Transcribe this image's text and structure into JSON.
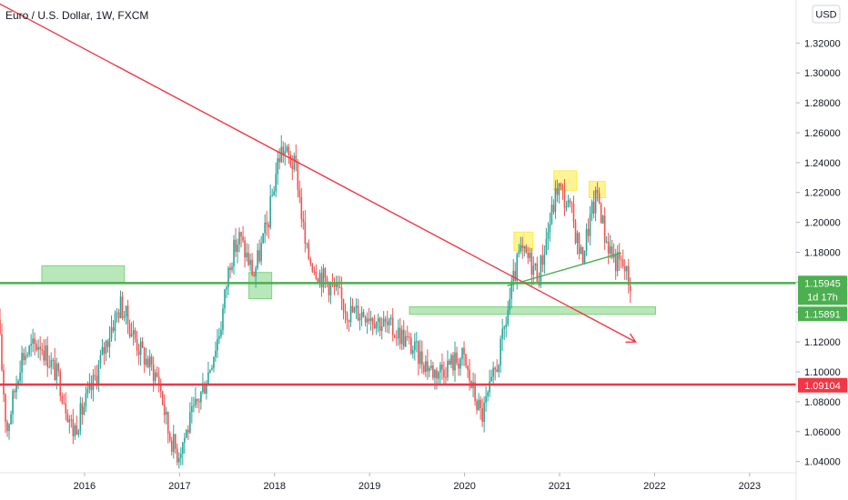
{
  "header": {
    "title": "Euro / U.S. Dollar, 1W, FXCM"
  },
  "currency_button": {
    "label": "USD"
  },
  "chart_data": {
    "type": "candlestick",
    "title": "Euro / U.S. Dollar, 1W, FXCM",
    "currency": "USD",
    "ylim": [
      1.0325,
      1.3488
    ],
    "y_ticks": [
      1.32,
      1.3,
      1.28,
      1.26,
      1.24,
      1.22,
      1.2,
      1.18,
      1.16,
      1.14,
      1.12,
      1.1,
      1.08,
      1.06,
      1.04
    ],
    "y_tick_labels": [
      "1.32000",
      "1.30000",
      "1.28000",
      "1.26000",
      "1.24000",
      "1.22000",
      "1.20000",
      "1.18000",
      "1.16000",
      "1.14000",
      "1.12000",
      "1.10000",
      "1.08000",
      "1.06000",
      "1.04000"
    ],
    "xlim": [
      2015.11,
      2023.49
    ],
    "x_ticks": [
      2016,
      2017,
      2018,
      2019,
      2020,
      2021,
      2022,
      2023
    ],
    "x_tick_labels": [
      "2016",
      "2017",
      "2018",
      "2019",
      "2020",
      "2021",
      "2022",
      "2023"
    ],
    "grid": false,
    "colors": {
      "up": "#26a69a",
      "down": "#ef5350",
      "green_line": "#4caf50",
      "red_line": "#f23645",
      "zone": "#7dd47f",
      "highlight": "#ffeb3b"
    },
    "price_path": [
      [
        2015.11,
        1.135
      ],
      [
        2015.2,
        1.06
      ],
      [
        2015.35,
        1.11
      ],
      [
        2015.55,
        1.12
      ],
      [
        2015.75,
        1.095
      ],
      [
        2015.9,
        1.06
      ],
      [
        2016.1,
        1.09
      ],
      [
        2016.3,
        1.13
      ],
      [
        2016.4,
        1.145
      ],
      [
        2016.6,
        1.115
      ],
      [
        2016.8,
        1.095
      ],
      [
        2016.9,
        1.06
      ],
      [
        2017.0,
        1.045
      ],
      [
        2017.15,
        1.07
      ],
      [
        2017.3,
        1.095
      ],
      [
        2017.45,
        1.13
      ],
      [
        2017.55,
        1.175
      ],
      [
        2017.65,
        1.19
      ],
      [
        2017.8,
        1.165
      ],
      [
        2017.95,
        1.2
      ],
      [
        2018.05,
        1.24
      ],
      [
        2018.1,
        1.25
      ],
      [
        2018.25,
        1.235
      ],
      [
        2018.35,
        1.18
      ],
      [
        2018.5,
        1.165
      ],
      [
        2018.65,
        1.155
      ],
      [
        2018.8,
        1.14
      ],
      [
        2019.0,
        1.14
      ],
      [
        2019.2,
        1.13
      ],
      [
        2019.35,
        1.125
      ],
      [
        2019.55,
        1.11
      ],
      [
        2019.7,
        1.1
      ],
      [
        2019.85,
        1.105
      ],
      [
        2020.0,
        1.11
      ],
      [
        2020.12,
        1.085
      ],
      [
        2020.2,
        1.07
      ],
      [
        2020.3,
        1.09
      ],
      [
        2020.4,
        1.115
      ],
      [
        2020.5,
        1.15
      ],
      [
        2020.6,
        1.18
      ],
      [
        2020.7,
        1.175
      ],
      [
        2020.8,
        1.165
      ],
      [
        2020.95,
        1.21
      ],
      [
        2021.0,
        1.225
      ],
      [
        2021.15,
        1.205
      ],
      [
        2021.25,
        1.175
      ],
      [
        2021.35,
        1.205
      ],
      [
        2021.42,
        1.22
      ],
      [
        2021.5,
        1.19
      ],
      [
        2021.6,
        1.175
      ],
      [
        2021.7,
        1.17
      ],
      [
        2021.75,
        1.16
      ]
    ],
    "horizontal_lines": [
      {
        "name": "green-support",
        "y": 1.1594,
        "color": "#4caf50"
      },
      {
        "name": "red-support",
        "y": 1.0915,
        "color": "#f23645"
      }
    ],
    "trend_lines": [
      {
        "name": "downtrend",
        "from": [
          2014.7,
          1.36
        ],
        "to": [
          2021.8,
          1.12
        ],
        "color": "#f23645",
        "arrow": true
      },
      {
        "name": "neckline",
        "from": [
          2020.45,
          1.1575
        ],
        "to": [
          2021.65,
          1.1795
        ],
        "color": "#4caf50",
        "arrow": false
      }
    ],
    "zones": [
      {
        "name": "green-zone-2016",
        "x": [
          2015.55,
          2016.42
        ],
        "y": [
          1.1595,
          1.171
        ],
        "color": "#7dd47f"
      },
      {
        "name": "green-zone-2017",
        "x": [
          2017.73,
          2017.97
        ],
        "y": [
          1.149,
          1.1665
        ],
        "color": "#7dd47f"
      },
      {
        "name": "green-zone-2019",
        "x": [
          2019.42,
          2022.01
        ],
        "y": [
          1.1385,
          1.1435
        ],
        "color": "#7dd47f"
      },
      {
        "name": "yellow-box-1",
        "x": [
          2020.52,
          2020.72
        ],
        "y": [
          1.181,
          1.1935
        ],
        "color": "#ffeb3b"
      },
      {
        "name": "yellow-box-2",
        "x": [
          2020.94,
          2021.18
        ],
        "y": [
          1.2215,
          1.2345
        ],
        "color": "#ffeb3b"
      },
      {
        "name": "yellow-box-3",
        "x": [
          2021.31,
          2021.48
        ],
        "y": [
          1.2165,
          1.2275
        ],
        "color": "#ffeb3b"
      }
    ],
    "price_badges": [
      {
        "name": "price-badge-current",
        "y": 1.15945,
        "label": "1.15945",
        "sub_label": "1d 17h",
        "color": "#4caf50"
      },
      {
        "name": "price-badge-low",
        "y": 1.15891,
        "label": "1.15891",
        "color": "#4caf50"
      },
      {
        "name": "price-badge-red",
        "y": 1.09104,
        "label": "1.09104",
        "color": "#f23645"
      }
    ]
  }
}
